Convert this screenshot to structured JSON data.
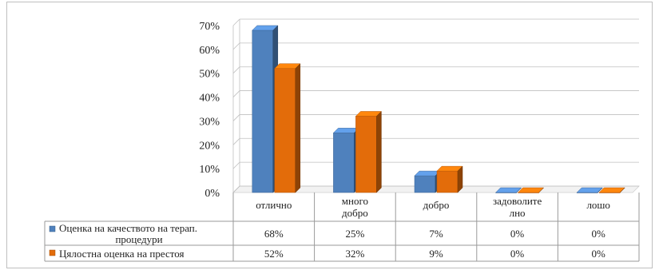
{
  "chart_data": {
    "type": "bar",
    "categories": [
      "отлично",
      "много добро",
      "добро",
      "задоволително",
      "лошо"
    ],
    "category_labels": [
      [
        "отлично"
      ],
      [
        "много",
        "добро"
      ],
      [
        "добро"
      ],
      [
        "задоволите",
        "лно"
      ],
      [
        "лошо"
      ]
    ],
    "yticks": [
      "0%",
      "10%",
      "20%",
      "30%",
      "40%",
      "50%",
      "60%",
      "70%"
    ],
    "ylim": [
      0,
      70
    ],
    "grid": true,
    "legend": "table-below",
    "colors": [
      "#4f81bd",
      "#e36c0a"
    ],
    "series": [
      {
        "name": "Оценка на качеството на терап. процедури",
        "name_lines": [
          "Оценка на качеството на терап.",
          "процедури"
        ],
        "values": [
          68,
          25,
          7,
          0,
          0
        ],
        "labels": [
          "68%",
          "25%",
          "7%",
          "0%",
          "0%"
        ]
      },
      {
        "name": "Цялостна оценка на престоя",
        "name_lines": [
          "Цялостна оценка на престоя"
        ],
        "values": [
          52,
          32,
          9,
          0,
          0
        ],
        "labels": [
          "52%",
          "32%",
          "9%",
          "0%",
          "0%"
        ]
      }
    ]
  }
}
